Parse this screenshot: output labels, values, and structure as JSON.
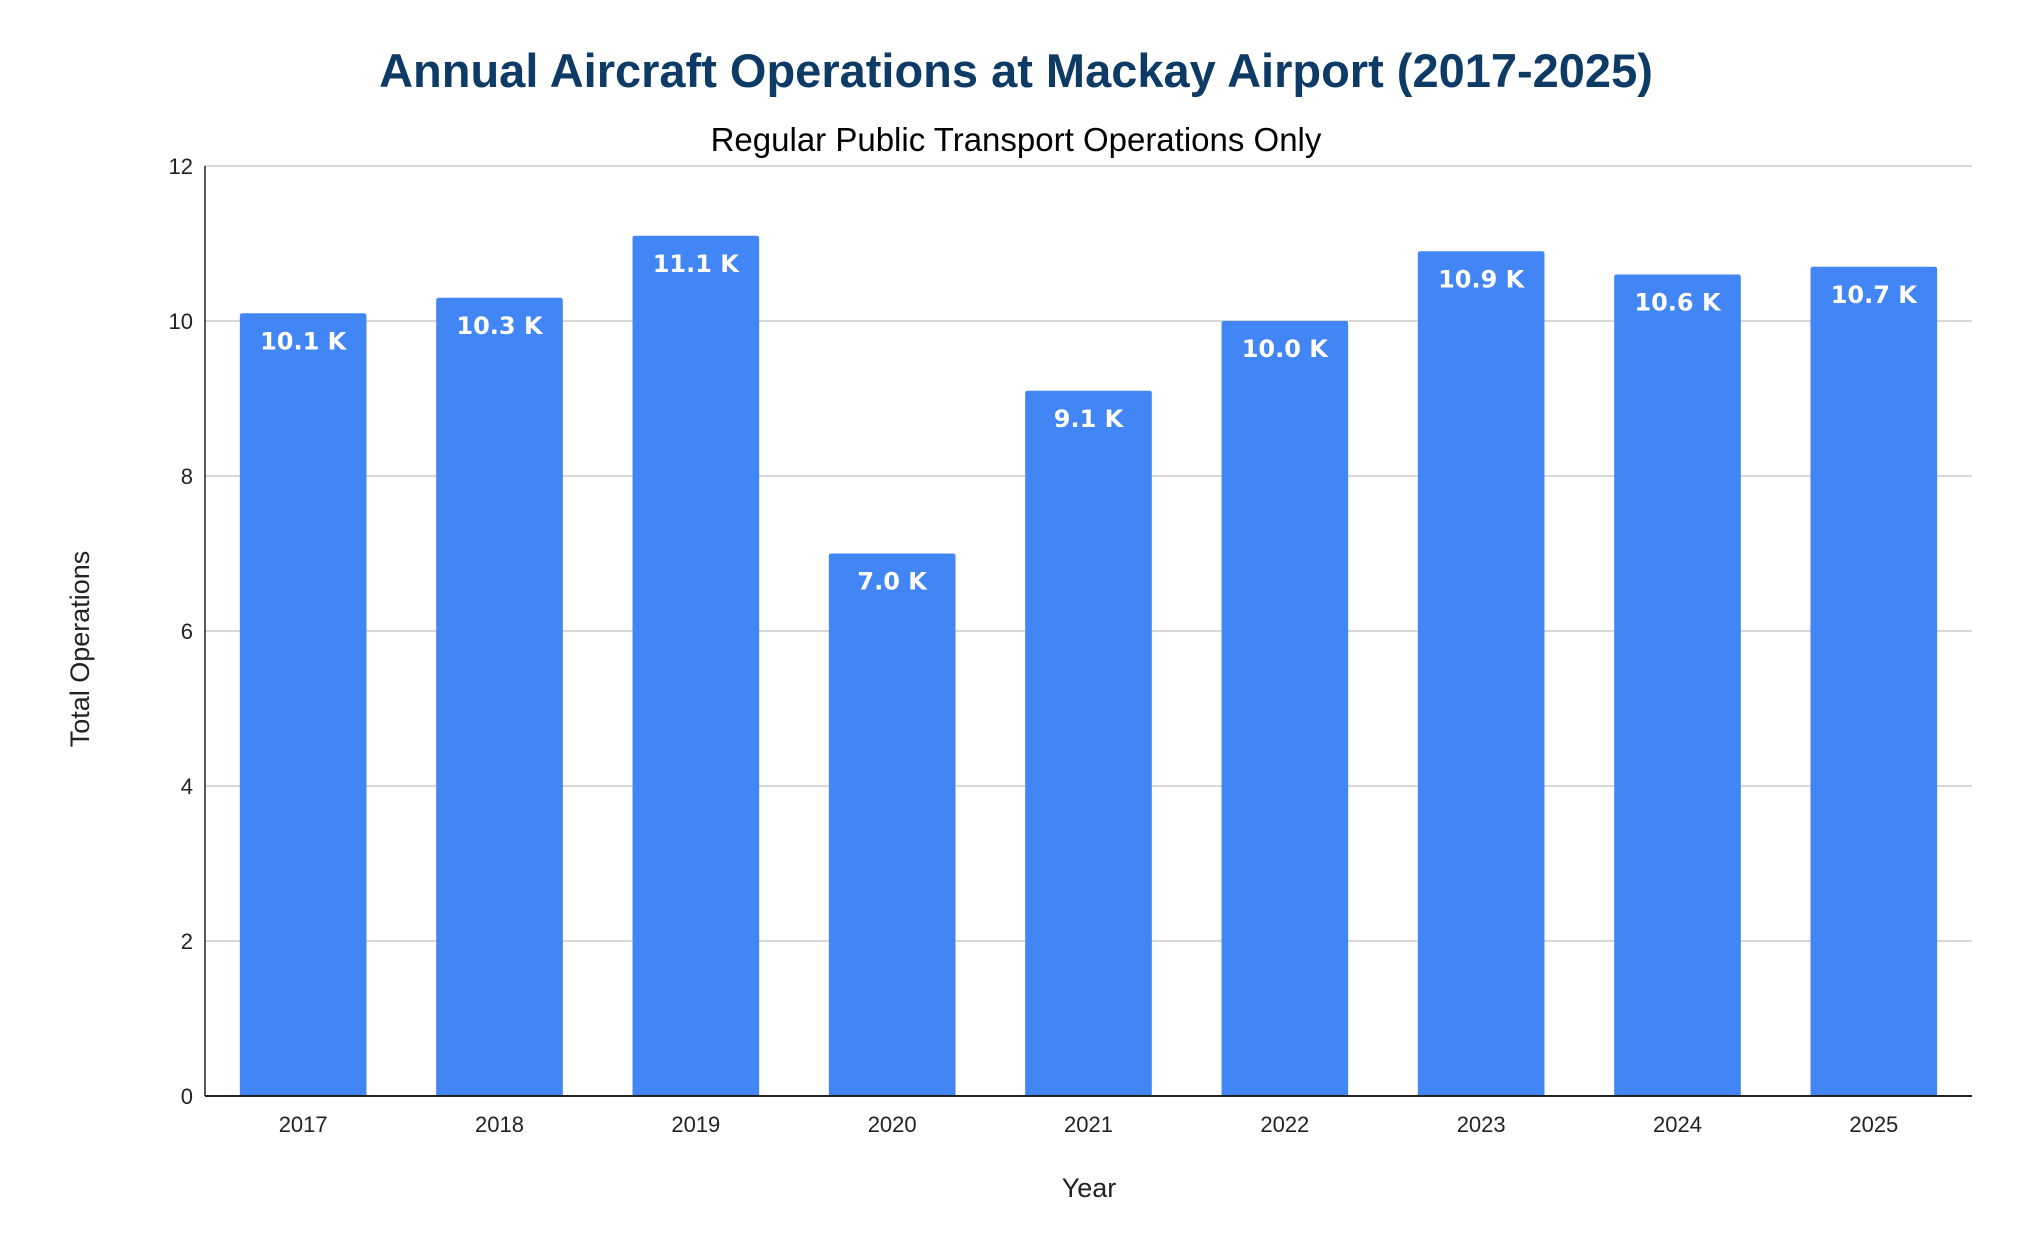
{
  "chart_data": {
    "type": "bar",
    "title": "Annual Aircraft Operations at Mackay Airport (2017-2025)",
    "subtitle": "Regular Public Transport Operations Only",
    "xlabel": "Year",
    "ylabel": "Total Operations",
    "categories": [
      "2017",
      "2018",
      "2019",
      "2020",
      "2021",
      "2022",
      "2023",
      "2024",
      "2025"
    ],
    "values": [
      10.1,
      10.3,
      11.1,
      7.0,
      9.1,
      10.0,
      10.9,
      10.6,
      10.7
    ],
    "data_labels": [
      "10.1 K",
      "10.3 K",
      "11.1 K",
      "7.0 K",
      "9.1 K",
      "10.0 K",
      "10.9 K",
      "10.6 K",
      "10.7 K"
    ],
    "ylim": [
      0,
      12
    ],
    "yticks": [
      0,
      2,
      4,
      6,
      8,
      10,
      12
    ],
    "grid": true,
    "legend": "none",
    "colors": {
      "bar": "#4285f4",
      "title": "#0d3b66",
      "grid": "#cccccc",
      "axis": "#222222",
      "data_label": "#ffffff"
    }
  }
}
